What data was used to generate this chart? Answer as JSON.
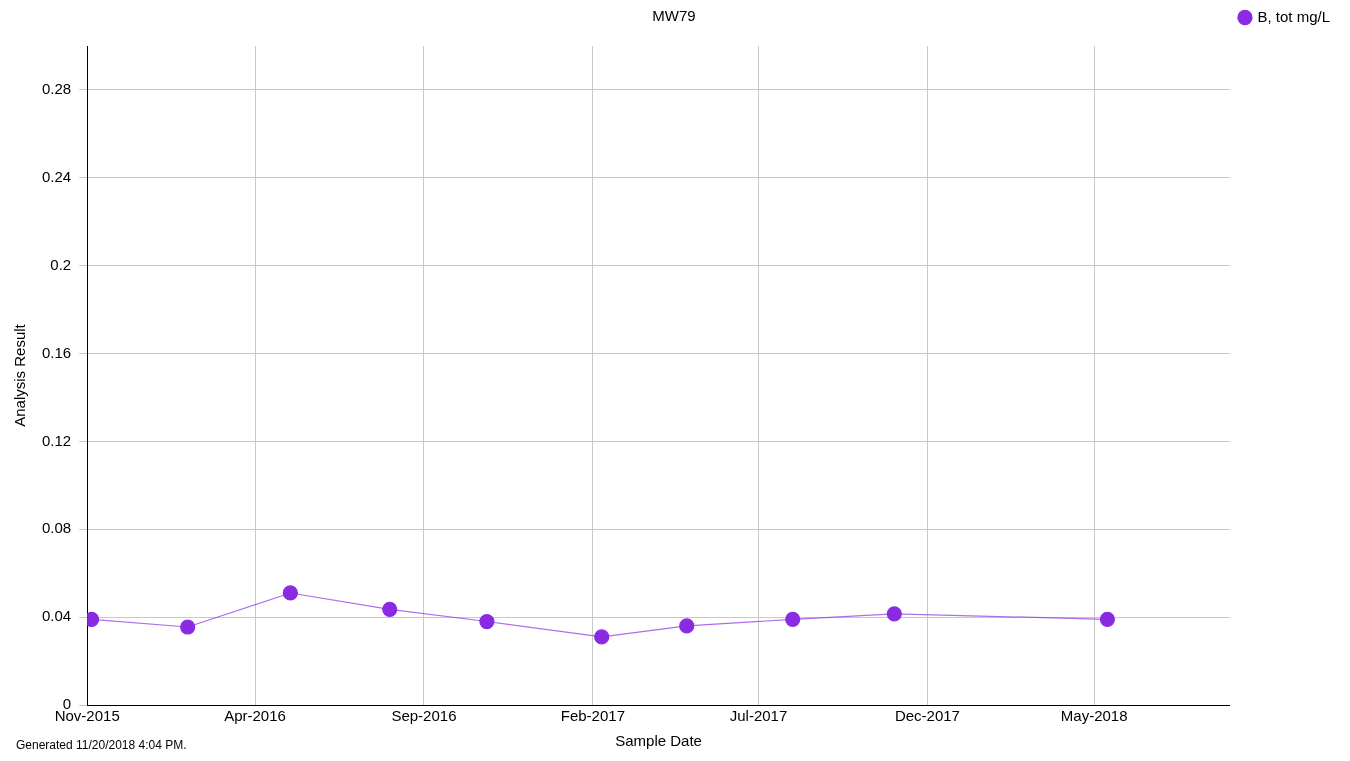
{
  "chart_data": {
    "type": "line",
    "title": "MW79",
    "xlabel": "Sample Date",
    "ylabel": "Analysis Result",
    "x": [
      "2015-11-05",
      "2016-01-31",
      "2016-05-03",
      "2016-08-01",
      "2016-10-28",
      "2017-02-09",
      "2017-04-27",
      "2017-08-01",
      "2017-11-01",
      "2018-05-13"
    ],
    "series": [
      {
        "name": "B, tot mg/L",
        "color": "#8a2be2",
        "values": [
          0.039,
          0.0355,
          0.051,
          0.0435,
          0.038,
          0.031,
          0.036,
          0.039,
          0.0415,
          0.039
        ]
      }
    ],
    "xlim": [
      "2015-11-01",
      "2018-09-01"
    ],
    "xticks": [
      {
        "value": "2015-11-01",
        "label": "Nov-2015"
      },
      {
        "value": "2016-04-01",
        "label": "Apr-2016"
      },
      {
        "value": "2016-09-01",
        "label": "Sep-2016"
      },
      {
        "value": "2017-02-01",
        "label": "Feb-2017"
      },
      {
        "value": "2017-07-01",
        "label": "Jul-2017"
      },
      {
        "value": "2017-12-01",
        "label": "Dec-2017"
      },
      {
        "value": "2018-05-01",
        "label": "May-2018"
      }
    ],
    "ylim": [
      0,
      0.3
    ],
    "yticks": [
      0,
      0.04,
      0.08,
      0.12,
      0.16,
      0.2,
      0.24,
      0.28
    ],
    "grid": true,
    "legend": "top right",
    "marker": "circle",
    "line_style": "solid",
    "annotations": [
      "Generated 11/20/2018 4:04 PM."
    ]
  }
}
